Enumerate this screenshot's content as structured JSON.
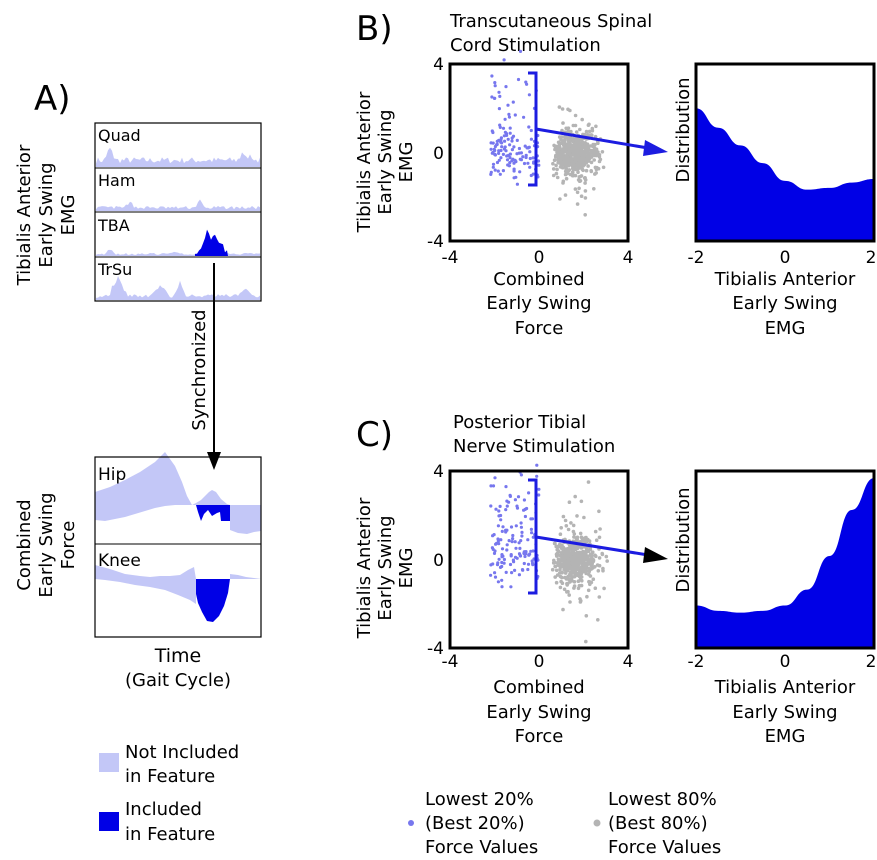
{
  "colors": {
    "light": "#c3c7f7",
    "dark": "#0000e6",
    "blue_line": "#1c1ce0",
    "light_dot": "#7777ee",
    "gray_dot": "#b4b4b4"
  },
  "panel_a": {
    "label": "A)",
    "ylabel_top": [
      "Tibialis Anterior",
      "Early Swing",
      "EMG"
    ],
    "muscles": [
      "Quad",
      "Ham",
      "TBA",
      "TrSu"
    ],
    "arrow_label": "Synchronized",
    "ylabel_bottom": [
      "Combined",
      "Early Swing",
      "Force"
    ],
    "force_traces": [
      "Hip",
      "Knee"
    ],
    "xlabel": [
      "Time",
      "(Gait Cycle)"
    ]
  },
  "panel_b": {
    "label": "B)",
    "title": [
      "Transcutaneous Spinal",
      "Cord Stimulation"
    ]
  },
  "panel_c": {
    "label": "C)",
    "title": [
      "Posterior Tibial",
      "Nerve Stimulation"
    ]
  },
  "scatter_axes": {
    "ylabel": [
      "Tibialis Anterior",
      "Early Swing",
      "EMG"
    ],
    "xlabel": [
      "Combined",
      "Early Swing",
      "Force"
    ],
    "xticks": [
      "-4",
      "0",
      "4"
    ],
    "yticks": [
      "4",
      "0",
      "-4"
    ]
  },
  "dist_axes": {
    "ylabel": "Distribution",
    "xlabel": [
      "Tibialis Anterior",
      "Early Swing",
      "EMG"
    ],
    "xticks": [
      "-2",
      "0",
      "2"
    ]
  },
  "legend_left": {
    "not_included": [
      "Not Included",
      "in Feature"
    ],
    "included": [
      "Included",
      "in Feature"
    ]
  },
  "legend_bottom": {
    "lowest20": [
      "Lowest 20%",
      "(Best 20%)",
      "Force Values"
    ],
    "lowest80": [
      "Lowest 80%",
      "(Best 80%)",
      "Force Values"
    ]
  },
  "chart_data": [
    {
      "type": "area",
      "panel": "B",
      "x": [
        -2,
        -1.5,
        -1,
        -0.5,
        0,
        0.5,
        1,
        1.5,
        2
      ],
      "y": [
        0.75,
        0.64,
        0.54,
        0.44,
        0.34,
        0.29,
        0.3,
        0.33,
        0.35
      ],
      "xlim": [
        -2,
        2
      ],
      "ylim": [
        0,
        1
      ]
    },
    {
      "type": "area",
      "panel": "C",
      "x": [
        -2,
        -1.5,
        -1,
        -0.5,
        0,
        0.5,
        1,
        1.5,
        2
      ],
      "y": [
        0.24,
        0.21,
        0.2,
        0.21,
        0.24,
        0.33,
        0.52,
        0.78,
        0.96
      ],
      "xlim": [
        -2,
        2
      ],
      "ylim": [
        0,
        1
      ]
    }
  ]
}
